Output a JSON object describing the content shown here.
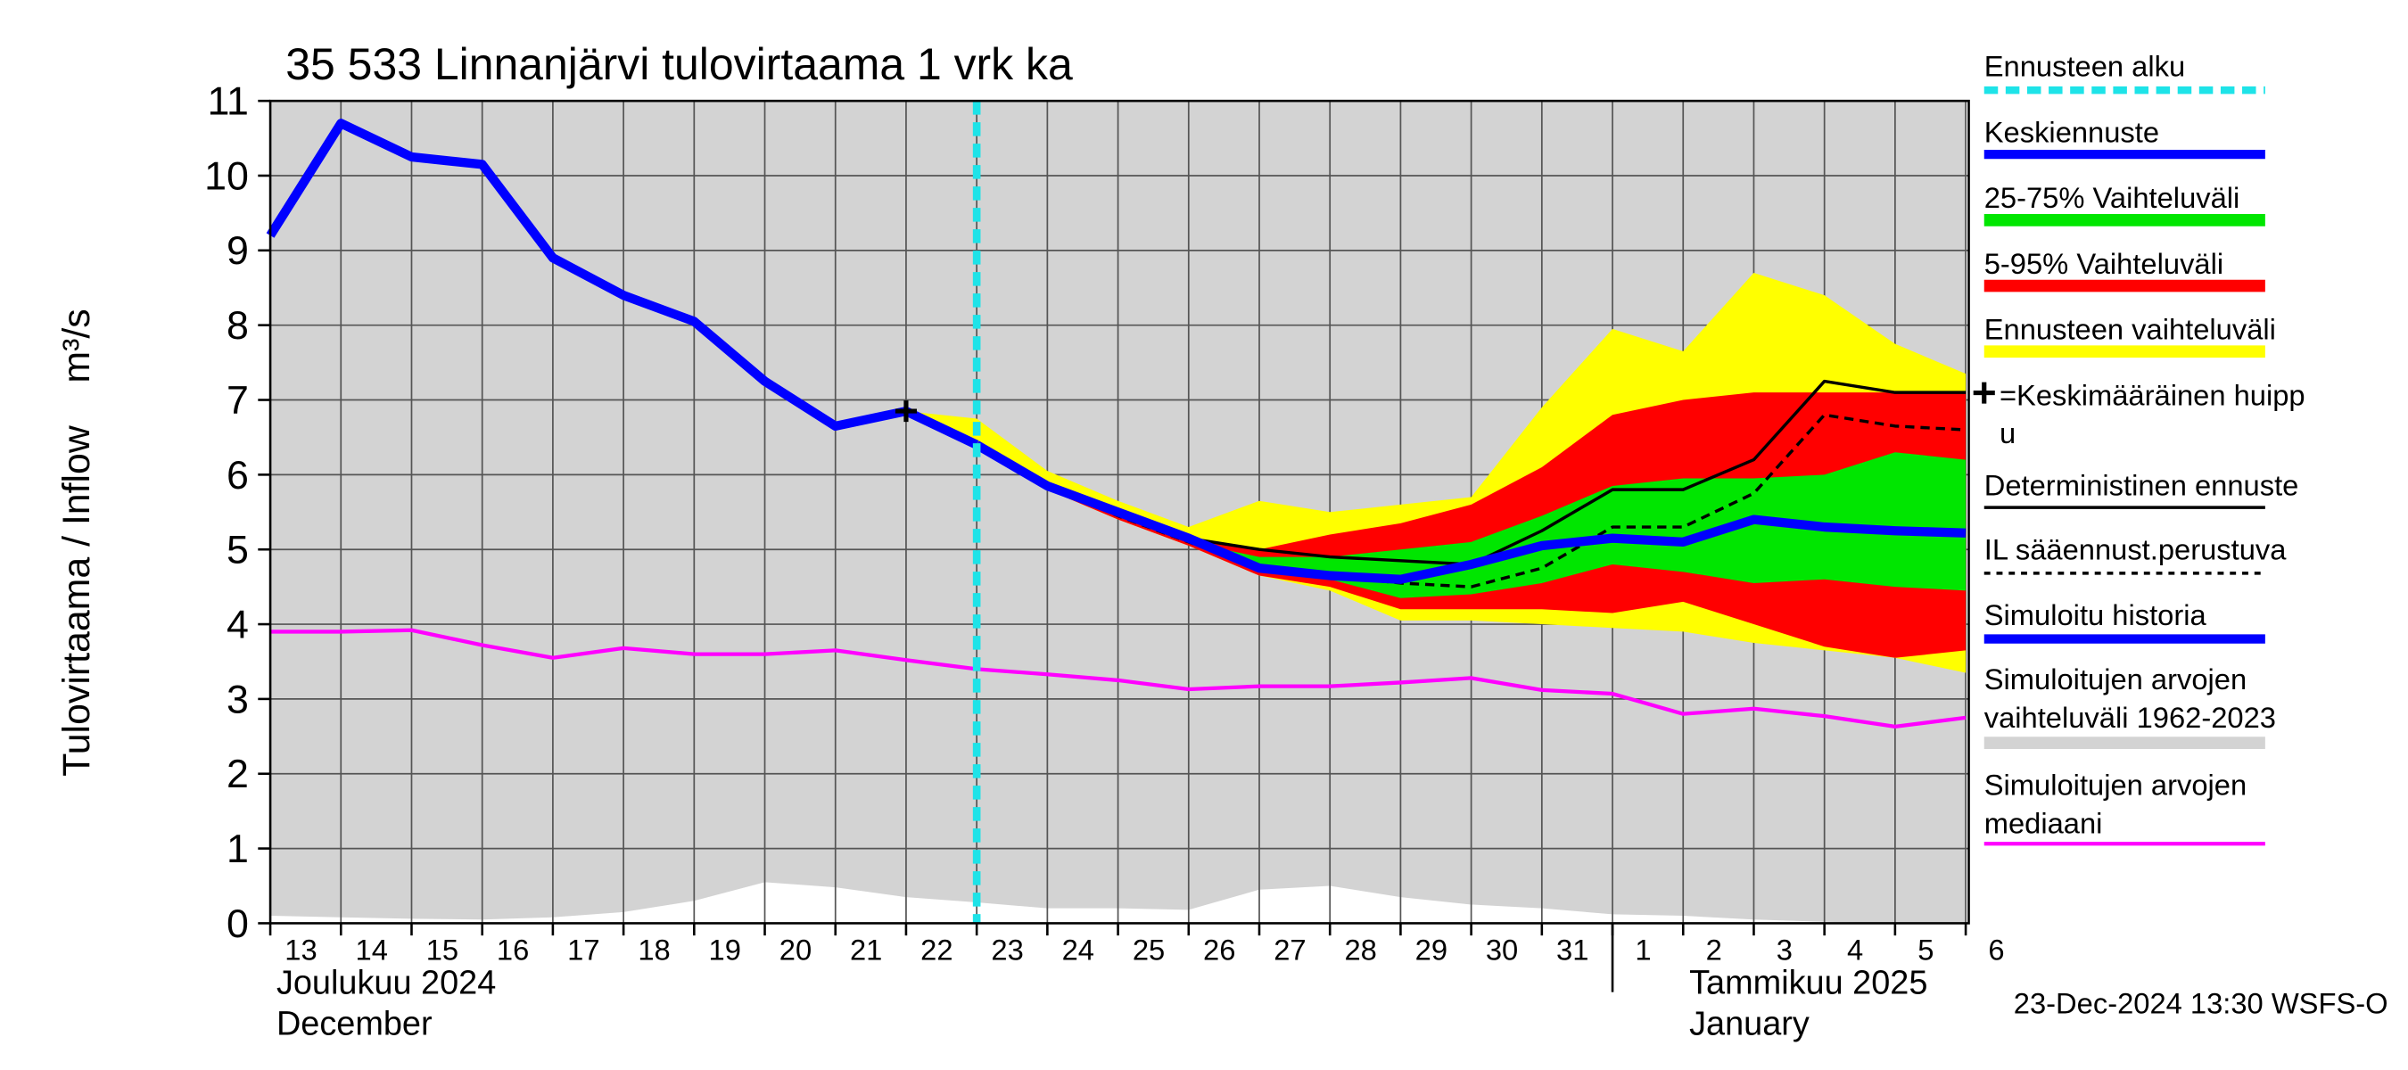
{
  "chart_data": {
    "type": "line",
    "title": "35 533 Linnanjärvi tulovirtaama 1 vrk ka",
    "ylabel": "Tulovirtaama / Inflow    m³/s",
    "categories": [
      "13",
      "14",
      "15",
      "16",
      "17",
      "18",
      "19",
      "20",
      "21",
      "22",
      "23",
      "24",
      "25",
      "26",
      "27",
      "28",
      "29",
      "30",
      "31",
      "1",
      "2",
      "3",
      "4",
      "5",
      "6"
    ],
    "month_labels": [
      "Joulukuu  2024",
      "December",
      "Tammikuu  2025",
      "January"
    ],
    "footer": "23-Dec-2024 13:30 WSFS-O",
    "ylim": [
      0,
      11
    ],
    "yticks": [
      0,
      1,
      2,
      3,
      4,
      5,
      6,
      7,
      8,
      9,
      10,
      11
    ],
    "grid": true,
    "series": [
      {
        "name": "Ennusteen alku",
        "kind": "vline",
        "color": "#1ee3e8",
        "dash": true,
        "x": 10
      },
      {
        "name": "Keskiennuste",
        "kind": "line",
        "color": "#0000ff",
        "width": 6,
        "values": [
          null,
          null,
          null,
          null,
          null,
          null,
          null,
          null,
          null,
          null,
          6.4,
          5.85,
          5.5,
          5.15,
          4.75,
          4.65,
          4.6,
          4.8,
          5.05,
          5.15,
          5.1,
          5.4,
          5.3,
          5.25,
          5.22
        ]
      },
      {
        "name": "25-75% Vaihteluväli",
        "kind": "band",
        "color": "#00e600",
        "upper": [
          null,
          null,
          null,
          null,
          null,
          null,
          null,
          null,
          null,
          null,
          6.4,
          5.85,
          5.5,
          5.1,
          4.9,
          4.9,
          5.0,
          5.1,
          5.45,
          5.85,
          5.95,
          5.95,
          6.0,
          6.3,
          6.2
        ],
        "lower": [
          null,
          null,
          null,
          null,
          null,
          null,
          null,
          null,
          null,
          null,
          6.4,
          5.85,
          5.45,
          5.1,
          4.7,
          4.6,
          4.35,
          4.4,
          4.55,
          4.8,
          4.7,
          4.55,
          4.6,
          4.5,
          4.45
        ]
      },
      {
        "name": "5-95% Vaihteluväli",
        "kind": "band",
        "color": "#ff0000",
        "upper": [
          null,
          null,
          null,
          null,
          null,
          null,
          null,
          null,
          null,
          null,
          6.4,
          5.9,
          5.5,
          5.15,
          5.0,
          5.2,
          5.35,
          5.6,
          6.1,
          6.8,
          7.0,
          7.1,
          7.1,
          7.1,
          7.1
        ],
        "lower": [
          null,
          null,
          null,
          null,
          null,
          null,
          null,
          null,
          null,
          null,
          6.4,
          5.8,
          5.4,
          5.05,
          4.65,
          4.5,
          4.2,
          4.2,
          4.2,
          4.15,
          4.3,
          4.0,
          3.7,
          3.55,
          3.65
        ]
      },
      {
        "name": "Ennusteen vaihteluväli",
        "kind": "band",
        "color": "#ffff00",
        "upper": [
          null,
          null,
          null,
          null,
          null,
          null,
          null,
          null,
          null,
          6.85,
          6.75,
          6.05,
          5.65,
          5.3,
          5.65,
          5.5,
          5.6,
          5.7,
          6.9,
          7.95,
          7.65,
          8.7,
          8.4,
          7.75,
          7.35
        ],
        "lower": [
          null,
          null,
          null,
          null,
          null,
          null,
          null,
          null,
          null,
          6.85,
          6.4,
          5.8,
          5.4,
          5.05,
          4.65,
          4.45,
          4.05,
          4.05,
          4.0,
          3.95,
          3.9,
          3.75,
          3.65,
          3.55,
          3.35
        ]
      },
      {
        "name": "=Keskimääräinen huipp\nu",
        "kind": "marker",
        "color": "#000000",
        "x": 9,
        "value": 6.85
      },
      {
        "name": "Deterministinen ennuste",
        "kind": "line",
        "color": "#000000",
        "width": 2,
        "values": [
          null,
          null,
          null,
          null,
          null,
          null,
          null,
          null,
          null,
          null,
          6.4,
          5.85,
          5.5,
          5.15,
          5.0,
          4.9,
          4.85,
          4.8,
          5.25,
          5.8,
          5.8,
          6.2,
          7.25,
          7.1,
          7.1
        ]
      },
      {
        "name": "IL sääennust.perustuva",
        "kind": "line",
        "color": "#000000",
        "width": 2,
        "dash": true,
        "values": [
          null,
          null,
          null,
          null,
          null,
          null,
          null,
          null,
          null,
          null,
          6.4,
          5.85,
          5.45,
          5.1,
          4.75,
          4.65,
          4.55,
          4.5,
          4.75,
          5.3,
          5.3,
          5.75,
          6.8,
          6.65,
          6.6
        ]
      },
      {
        "name": "Simuloitu historia",
        "kind": "line",
        "color": "#0000ff",
        "width": 6,
        "values": [
          9.2,
          10.7,
          10.25,
          10.15,
          8.9,
          8.4,
          8.05,
          7.25,
          6.65,
          6.85,
          6.4,
          null,
          null,
          null,
          null,
          null,
          null,
          null,
          null,
          null,
          null,
          null,
          null,
          null,
          null
        ]
      },
      {
        "name": "Simuloitujen arvojen\nvaihteluväli 1962-2023",
        "kind": "band",
        "color": "#d3d3d3",
        "upper": [
          11,
          11,
          11,
          11,
          11,
          11,
          11,
          11,
          11,
          11,
          11,
          11,
          11,
          11,
          11,
          11,
          11,
          11,
          11,
          11,
          11,
          11,
          11,
          11,
          11
        ],
        "lower": [
          0.1,
          0.08,
          0.06,
          0.05,
          0.08,
          0.15,
          0.3,
          0.55,
          0.48,
          0.35,
          0.28,
          0.2,
          0.2,
          0.18,
          0.45,
          0.5,
          0.35,
          0.25,
          0.2,
          0.12,
          0.1,
          0.05,
          0.02,
          0.0,
          0.0
        ]
      },
      {
        "name": "Simuloitujen arvojen\nmediaani",
        "kind": "line",
        "color": "#ff00ff",
        "width": 2.5,
        "values": [
          3.9,
          3.9,
          3.92,
          3.72,
          3.55,
          3.68,
          3.6,
          3.6,
          3.65,
          3.52,
          3.4,
          3.33,
          3.25,
          3.13,
          3.17,
          3.17,
          3.22,
          3.28,
          3.12,
          3.07,
          2.8,
          2.87,
          2.77,
          2.63,
          2.75
        ]
      }
    ]
  }
}
